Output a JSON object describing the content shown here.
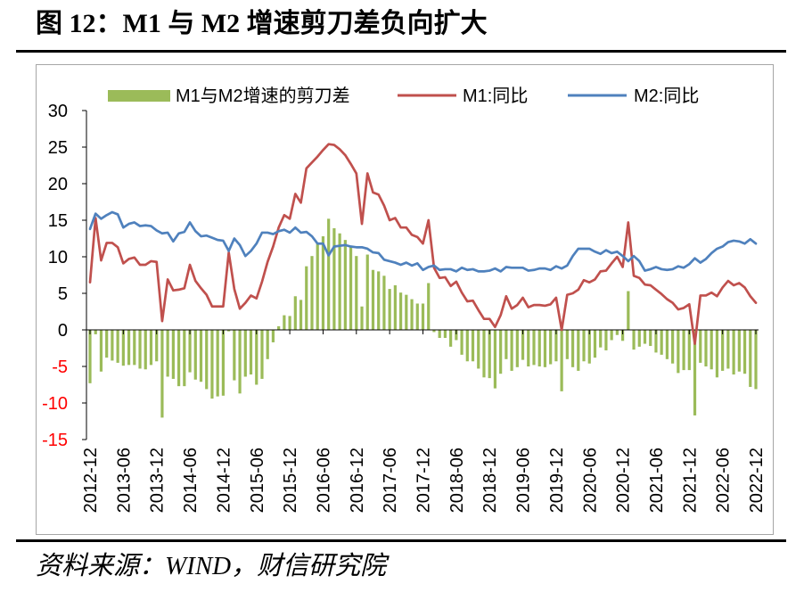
{
  "chart_data": {
    "type": "bar",
    "title": "图 12：M1 与 M2 增速剪刀差负向扩大",
    "legend": "top",
    "grid": false,
    "ylim": [
      -15,
      30
    ],
    "yticks": [
      30,
      25,
      20,
      15,
      10,
      5,
      0,
      -5,
      -10,
      -15
    ],
    "negative_tick_color": "#ff0000",
    "xticks": [
      "2012-12",
      "2013-06",
      "2013-12",
      "2014-06",
      "2014-12",
      "2015-06",
      "2015-12",
      "2016-06",
      "2016-12",
      "2017-06",
      "2017-12",
      "2018-06",
      "2018-12",
      "2019-06",
      "2019-12",
      "2020-06",
      "2020-12",
      "2021-06",
      "2021-12",
      "2022-06",
      "2022-12"
    ],
    "x": [
      "2012-12",
      "2013-01",
      "2013-02",
      "2013-03",
      "2013-04",
      "2013-05",
      "2013-06",
      "2013-07",
      "2013-08",
      "2013-09",
      "2013-10",
      "2013-11",
      "2013-12",
      "2014-01",
      "2014-02",
      "2014-03",
      "2014-04",
      "2014-05",
      "2014-06",
      "2014-07",
      "2014-08",
      "2014-09",
      "2014-10",
      "2014-11",
      "2014-12",
      "2015-01",
      "2015-02",
      "2015-03",
      "2015-04",
      "2015-05",
      "2015-06",
      "2015-07",
      "2015-08",
      "2015-09",
      "2015-10",
      "2015-11",
      "2015-12",
      "2016-01",
      "2016-02",
      "2016-03",
      "2016-04",
      "2016-05",
      "2016-06",
      "2016-07",
      "2016-08",
      "2016-09",
      "2016-10",
      "2016-11",
      "2016-12",
      "2017-01",
      "2017-02",
      "2017-03",
      "2017-04",
      "2017-05",
      "2017-06",
      "2017-07",
      "2017-08",
      "2017-09",
      "2017-10",
      "2017-11",
      "2017-12",
      "2018-01",
      "2018-02",
      "2018-03",
      "2018-04",
      "2018-05",
      "2018-06",
      "2018-07",
      "2018-08",
      "2018-09",
      "2018-10",
      "2018-11",
      "2018-12",
      "2019-01",
      "2019-02",
      "2019-03",
      "2019-04",
      "2019-05",
      "2019-06",
      "2019-07",
      "2019-08",
      "2019-09",
      "2019-10",
      "2019-11",
      "2019-12",
      "2020-01",
      "2020-02",
      "2020-03",
      "2020-04",
      "2020-05",
      "2020-06",
      "2020-07",
      "2020-08",
      "2020-09",
      "2020-10",
      "2020-11",
      "2020-12",
      "2021-01",
      "2021-02",
      "2021-03",
      "2021-04",
      "2021-05",
      "2021-06",
      "2021-07",
      "2021-08",
      "2021-09",
      "2021-10",
      "2021-11",
      "2021-12",
      "2022-01",
      "2022-02",
      "2022-03",
      "2022-04",
      "2022-05",
      "2022-06",
      "2022-07",
      "2022-08",
      "2022-09",
      "2022-10",
      "2022-11",
      "2022-12"
    ],
    "series": [
      {
        "name": "M1与M2增速的剪刀差",
        "type": "bar",
        "color": "#9bbb59",
        "values": [
          -7.3,
          -0.6,
          -5.7,
          -3.8,
          -4.2,
          -4.5,
          -4.9,
          -4.8,
          -4.8,
          -5.3,
          -5.4,
          -4.8,
          -4.3,
          -12.0,
          -6.4,
          -6.7,
          -7.7,
          -7.7,
          -5.8,
          -6.8,
          -7.1,
          -8.1,
          -9.4,
          -9.1,
          -9.0,
          -0.2,
          -6.9,
          -8.7,
          -6.4,
          -6.1,
          -7.5,
          -6.7,
          -4.0,
          -1.7,
          0.5,
          2.0,
          1.9,
          4.6,
          4.1,
          8.7,
          10.1,
          11.9,
          12.8,
          15.2,
          13.9,
          13.2,
          12.3,
          11.3,
          10.1,
          3.2,
          10.3,
          8.2,
          8.0,
          7.4,
          5.6,
          6.1,
          5.1,
          4.8,
          4.2,
          3.6,
          3.6,
          6.4,
          -0.3,
          -1.1,
          -1.1,
          -2.3,
          -1.4,
          -3.4,
          -4.3,
          -4.3,
          -5.3,
          -6.5,
          -6.6,
          -8.0,
          -6.0,
          -4.0,
          -5.6,
          -5.1,
          -4.1,
          -5.0,
          -4.8,
          -5.0,
          -5.1,
          -4.7,
          -4.3,
          -8.4,
          -4.0,
          -5.1,
          -5.6,
          -4.3,
          -4.6,
          -3.8,
          -2.4,
          -2.8,
          -1.4,
          -0.7,
          -1.5,
          5.3,
          -2.7,
          -2.3,
          -1.9,
          -2.2,
          -3.1,
          -3.4,
          -4.0,
          -4.6,
          -5.9,
          -5.5,
          -5.5,
          -11.7,
          -4.5,
          -5.0,
          -5.4,
          -6.5,
          -5.6,
          -5.3,
          -6.1,
          -5.7,
          -6.0,
          -7.8,
          -8.1
        ]
      },
      {
        "name": "M1:同比",
        "type": "line",
        "color": "#c0504d",
        "values": [
          6.5,
          15.3,
          9.5,
          11.9,
          11.9,
          11.3,
          9.1,
          9.7,
          9.9,
          8.9,
          8.9,
          9.4,
          9.3,
          1.2,
          6.9,
          5.4,
          5.5,
          5.7,
          8.9,
          6.7,
          5.7,
          4.8,
          3.2,
          3.2,
          3.2,
          10.6,
          5.6,
          2.9,
          3.7,
          4.7,
          4.3,
          6.6,
          9.3,
          11.4,
          14.0,
          15.7,
          15.2,
          18.6,
          17.4,
          22.1,
          22.9,
          23.7,
          24.6,
          25.4,
          25.3,
          24.7,
          23.9,
          22.7,
          21.4,
          14.5,
          21.4,
          18.8,
          18.5,
          17.0,
          15.0,
          15.3,
          14.0,
          14.0,
          13.0,
          12.7,
          11.8,
          15.0,
          8.5,
          7.1,
          7.2,
          6.0,
          6.6,
          5.1,
          3.9,
          4.0,
          2.7,
          1.5,
          1.5,
          0.4,
          2.0,
          4.6,
          2.9,
          3.4,
          4.4,
          3.1,
          3.4,
          3.4,
          3.3,
          3.5,
          4.4,
          0.0,
          4.8,
          5.0,
          5.5,
          6.8,
          6.5,
          6.9,
          8.0,
          8.1,
          9.1,
          10.0,
          8.6,
          14.7,
          7.4,
          7.1,
          6.2,
          6.1,
          5.5,
          4.9,
          4.2,
          3.7,
          2.8,
          3.0,
          3.5,
          -1.9,
          4.7,
          4.7,
          5.1,
          4.6,
          5.8,
          6.7,
          6.1,
          6.4,
          5.8,
          4.6,
          3.7
        ]
      },
      {
        "name": "M2:同比",
        "type": "line",
        "color": "#4f81bd",
        "values": [
          13.8,
          15.9,
          15.2,
          15.7,
          16.1,
          15.8,
          14.0,
          14.5,
          14.7,
          14.2,
          14.3,
          14.2,
          13.6,
          13.2,
          13.3,
          12.1,
          13.2,
          13.4,
          14.7,
          13.5,
          12.8,
          12.9,
          12.6,
          12.3,
          12.2,
          10.8,
          12.5,
          11.6,
          10.1,
          10.8,
          11.8,
          13.3,
          13.3,
          13.1,
          13.5,
          13.7,
          13.3,
          14.0,
          13.3,
          13.4,
          12.8,
          11.8,
          11.8,
          10.2,
          11.4,
          11.5,
          11.6,
          11.4,
          11.3,
          11.3,
          11.1,
          10.6,
          10.5,
          9.6,
          9.4,
          9.2,
          8.9,
          9.2,
          8.8,
          9.1,
          8.2,
          8.6,
          8.8,
          8.2,
          8.3,
          8.3,
          8.0,
          8.5,
          8.2,
          8.3,
          8.0,
          8.0,
          8.1,
          8.4,
          8.0,
          8.6,
          8.5,
          8.5,
          8.5,
          8.1,
          8.2,
          8.4,
          8.4,
          8.2,
          8.7,
          8.4,
          8.8,
          10.1,
          11.1,
          11.1,
          11.1,
          10.7,
          10.4,
          10.9,
          10.5,
          10.7,
          10.1,
          9.4,
          10.1,
          9.4,
          8.1,
          8.3,
          8.6,
          8.3,
          8.2,
          8.3,
          8.7,
          8.5,
          9.0,
          9.8,
          9.2,
          9.7,
          10.5,
          11.1,
          11.4,
          12.0,
          12.2,
          12.1,
          11.8,
          12.4,
          11.8
        ]
      }
    ]
  },
  "source": "资料来源：WIND，财信研究院"
}
